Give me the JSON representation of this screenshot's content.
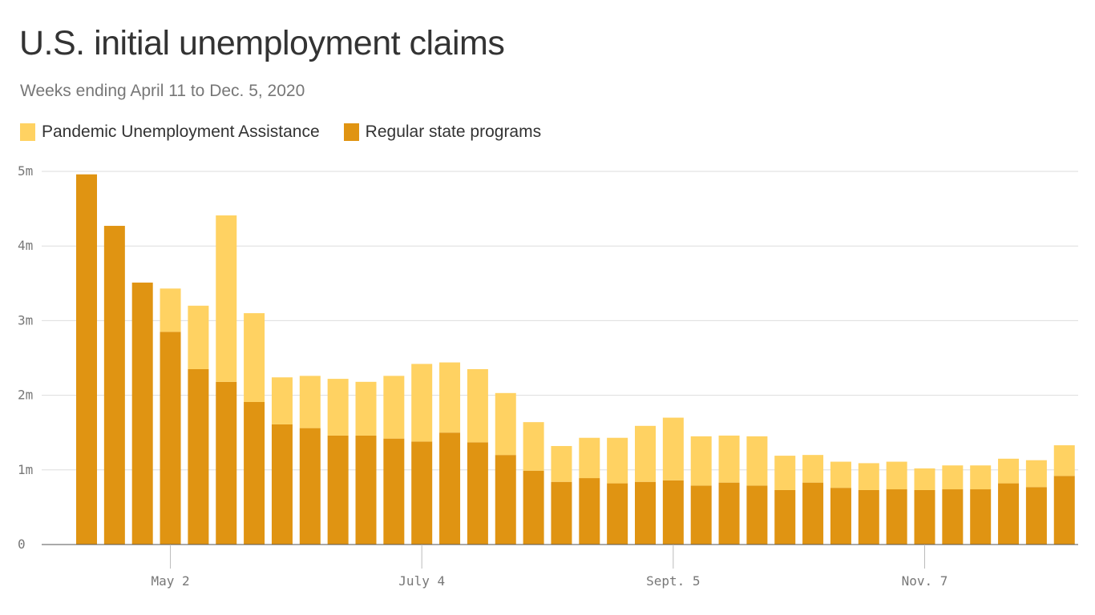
{
  "chart_data": {
    "type": "bar",
    "stacked": true,
    "title": "U.S. initial unemployment claims",
    "subtitle": "Weeks ending April 11 to Dec. 5, 2020",
    "legend_position": "top-left",
    "grid": true,
    "ylim": [
      0,
      5
    ],
    "y_ticks": [
      "0",
      "1m",
      "2m",
      "3m",
      "4m",
      "5m"
    ],
    "x_ticks": [
      {
        "label": "May 2",
        "index": 3
      },
      {
        "label": "July 4",
        "index": 12
      },
      {
        "label": "Sept. 5",
        "index": 21
      },
      {
        "label": "Nov. 7",
        "index": 30
      }
    ],
    "series": [
      {
        "name": "Regular state programs",
        "color": "#e09412",
        "values": [
          4.96,
          4.27,
          3.51,
          2.85,
          2.35,
          2.18,
          1.91,
          1.61,
          1.56,
          1.46,
          1.46,
          1.42,
          1.38,
          1.5,
          1.37,
          1.2,
          0.99,
          0.84,
          0.89,
          0.82,
          0.84,
          0.86,
          0.79,
          0.83,
          0.79,
          0.73,
          0.83,
          0.76,
          0.73,
          0.74,
          0.73,
          0.74,
          0.74,
          0.82,
          0.77,
          0.92
        ]
      },
      {
        "name": "Pandemic Unemployment Assistance",
        "color": "#ffd262",
        "values": [
          0,
          0,
          0,
          0.58,
          0.85,
          2.23,
          1.19,
          0.63,
          0.7,
          0.76,
          0.72,
          0.84,
          1.04,
          0.94,
          0.98,
          0.83,
          0.65,
          0.48,
          0.54,
          0.61,
          0.75,
          0.84,
          0.66,
          0.63,
          0.66,
          0.46,
          0.37,
          0.35,
          0.36,
          0.37,
          0.29,
          0.32,
          0.32,
          0.33,
          0.36,
          0.41
        ]
      }
    ]
  }
}
